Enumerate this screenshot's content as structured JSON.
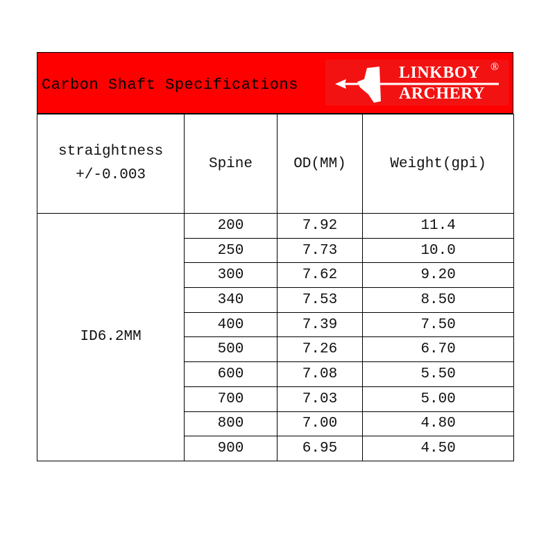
{
  "banner": {
    "title": "Carbon Shaft Specifications",
    "logo": {
      "line1": "LINKBOY",
      "line2": "ARCHERY",
      "registered": "®"
    },
    "background_color": "#ff0000"
  },
  "table": {
    "headers": [
      "straightness +/-0.003",
      "Spine",
      "OD(MM)",
      "Weight(gpi)"
    ],
    "group_label": "ID6.2MM",
    "rows": [
      {
        "spine": "200",
        "od": "7.92",
        "weight": "11.4"
      },
      {
        "spine": "250",
        "od": "7.73",
        "weight": "10.0"
      },
      {
        "spine": "300",
        "od": "7.62",
        "weight": "9.20"
      },
      {
        "spine": "340",
        "od": "7.53",
        "weight": "8.50"
      },
      {
        "spine": "400",
        "od": "7.39",
        "weight": "7.50"
      },
      {
        "spine": "500",
        "od": "7.26",
        "weight": "6.70"
      },
      {
        "spine": "600",
        "od": "7.08",
        "weight": "5.50"
      },
      {
        "spine": "700",
        "od": "7.03",
        "weight": "5.00"
      },
      {
        "spine": "800",
        "od": "7.00",
        "weight": "4.80"
      },
      {
        "spine": "900",
        "od": "6.95",
        "weight": "4.50"
      }
    ]
  }
}
